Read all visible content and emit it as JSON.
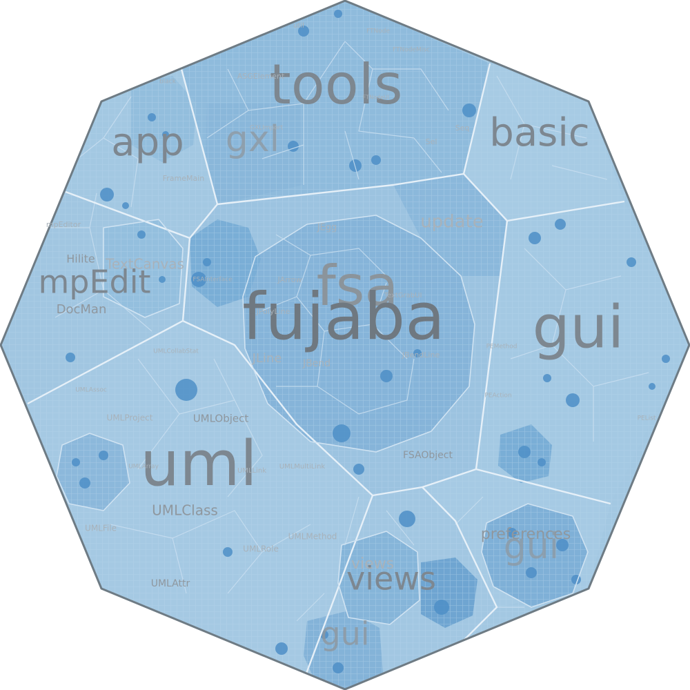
{
  "colors": {
    "background": "#ffffff",
    "cell_light": "#a3c8e2",
    "cell_mid": "#8ab8da",
    "cell_dark": "#6fa6d1",
    "cell_darkest": "#4a8cc6",
    "border_main": "#dcebf6",
    "border_sub": "#c2dbee",
    "outline": "#6e7b84",
    "label": "#7d8790"
  },
  "labels": {
    "top_level": {
      "fujaba": "fujaba",
      "fsa": "fsa",
      "tools": "tools",
      "gui_right": "gui",
      "uml": "uml",
      "basic": "basic",
      "app": "app",
      "gxl": "gxl",
      "mpedit": "mpEdit",
      "views": "views",
      "gui_bottom": "gui",
      "gui_lower_right": "gui"
    },
    "packages": {
      "preferences": "preferences",
      "update": "update",
      "hilite": "Hilite",
      "docman": "DocMan",
      "textcanvas": "TextCanvas",
      "mpeditor": "mpEditor"
    },
    "classes": {
      "uml_object": "UMLObject",
      "uml_class": "UMLClass",
      "uml_project": "UMLProject",
      "uml_file": "UMLFile",
      "uml_attr": "UMLAttr",
      "uml_method": "UMLMethod",
      "uml_role": "UMLRole",
      "uml_link": "UMLLink",
      "uml_multilink": "UMLMultiLink",
      "uml_assoc": "UMLAssoc",
      "uml_collabstat": "UMLCollabStat",
      "uml_array": "UMLArray",
      "fsa_object": "FSAObject",
      "fsa_interface": "FSAInterface",
      "jline": "JLine",
      "jbend": "JBend",
      "jbendline": "JBendLine",
      "jpolyline": "JPolyLine",
      "jarrow": "JArrow",
      "jegg": "JEgg",
      "textgrabui": "TextGrabUI",
      "asg_element": "ASGElement",
      "gxl_import": "GXLImport",
      "ftnode": "FTNode",
      "ftnodemisc": "FTNodeMisc",
      "ftnodeui": "FTNodeUI",
      "framemain": "FrameMain",
      "util": "util",
      "sel": "Sel",
      "seq": "Seq",
      "pe_list": "PEList",
      "pe_method": "PEMethod",
      "peaction": "PEAction",
      "black": "black",
      "views_sub": "views"
    }
  }
}
